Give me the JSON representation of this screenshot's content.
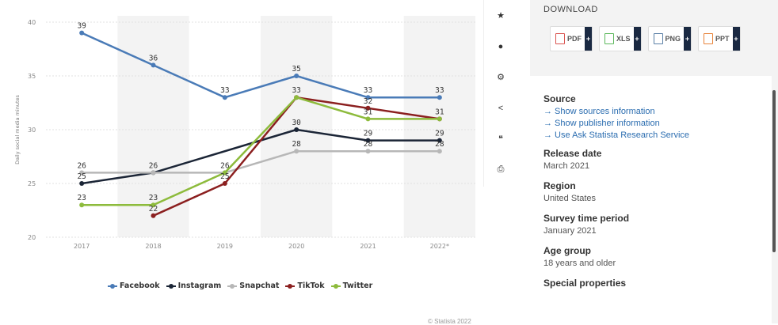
{
  "chart_data": {
    "type": "line",
    "categories": [
      "2017",
      "2018",
      "2019",
      "2020",
      "2021",
      "2022*"
    ],
    "ylabel": "Daily social media minutes",
    "ylim": [
      20,
      40
    ],
    "yticks": [
      20,
      25,
      30,
      35,
      40
    ],
    "grid": true,
    "legend": "bottom",
    "series": [
      {
        "name": "Facebook",
        "color": "#4a7bb7",
        "values": [
          39,
          36,
          33,
          35,
          33,
          33
        ]
      },
      {
        "name": "Instagram",
        "color": "#1b2536",
        "values": [
          25,
          26,
          null,
          30,
          29,
          29
        ]
      },
      {
        "name": "Snapchat",
        "color": "#b7b7b7",
        "values": [
          26,
          26,
          26,
          28,
          28,
          28
        ]
      },
      {
        "name": "TikTok",
        "color": "#8b1f1f",
        "values": [
          null,
          22,
          25,
          33,
          32,
          31
        ]
      },
      {
        "name": "Twitter",
        "color": "#8dbb3c",
        "values": [
          23,
          23,
          26,
          33,
          31,
          31
        ]
      }
    ],
    "data_labels": [
      {
        "x": 0,
        "y": 39,
        "text": "39"
      },
      {
        "x": 1,
        "y": 36,
        "text": "36"
      },
      {
        "x": 2,
        "y": 33,
        "text": "33"
      },
      {
        "x": 3,
        "y": 35,
        "text": "35"
      },
      {
        "x": 4,
        "y": 33,
        "text": "33"
      },
      {
        "x": 5,
        "y": 33,
        "text": "33"
      },
      {
        "x": 0,
        "y": 26,
        "text": "26"
      },
      {
        "x": 0,
        "y": 25,
        "text": "25"
      },
      {
        "x": 0,
        "y": 23,
        "text": "23"
      },
      {
        "x": 1,
        "y": 26,
        "text": "26"
      },
      {
        "x": 1,
        "y": 23,
        "text": "23"
      },
      {
        "x": 1,
        "y": 22,
        "text": "22"
      },
      {
        "x": 2,
        "y": 26,
        "text": "26"
      },
      {
        "x": 2,
        "y": 25,
        "text": "25"
      },
      {
        "x": 3,
        "y": 33,
        "text": "33"
      },
      {
        "x": 3,
        "y": 30,
        "text": "30"
      },
      {
        "x": 3,
        "y": 28,
        "text": "28"
      },
      {
        "x": 4,
        "y": 32,
        "text": "32"
      },
      {
        "x": 4,
        "y": 31,
        "text": "31"
      },
      {
        "x": 4,
        "y": 29,
        "text": "29"
      },
      {
        "x": 4,
        "y": 28,
        "text": "28"
      },
      {
        "x": 5,
        "y": 31,
        "text": "31"
      },
      {
        "x": 5,
        "y": 29,
        "text": "29"
      },
      {
        "x": 5,
        "y": 28,
        "text": "28"
      }
    ]
  },
  "copyright": "© Statista 2022",
  "toolbar": [
    {
      "icon": "star-icon",
      "glyph": "★"
    },
    {
      "icon": "bell-icon",
      "glyph": "●"
    },
    {
      "icon": "gear-icon",
      "glyph": "⚙"
    },
    {
      "icon": "share-icon",
      "glyph": "<"
    },
    {
      "icon": "quote-icon",
      "glyph": "❝"
    },
    {
      "icon": "print-icon",
      "glyph": "⎙"
    }
  ],
  "download": {
    "title": "DOWNLOAD",
    "buttons": [
      {
        "label": "PDF",
        "color": "#d9534f"
      },
      {
        "label": "XLS",
        "color": "#5cb85c"
      },
      {
        "label": "PNG",
        "color": "#5a7fa6"
      },
      {
        "label": "PPT",
        "color": "#e8833a"
      }
    ],
    "plus": "+"
  },
  "info": {
    "source_heading": "Source",
    "source_links": [
      "→ Show sources information",
      "→ Show publisher information",
      "→ Use Ask Statista Research Service"
    ],
    "release_heading": "Release date",
    "release_value": "March 2021",
    "region_heading": "Region",
    "region_value": "United States",
    "survey_heading": "Survey time period",
    "survey_value": "January 2021",
    "age_heading": "Age group",
    "age_value": "18 years and older",
    "special_heading": "Special properties"
  }
}
